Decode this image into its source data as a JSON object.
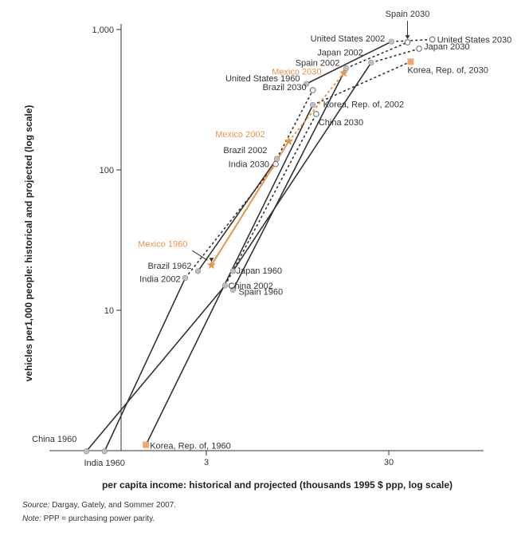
{
  "chart_data": {
    "type": "line",
    "title": "",
    "xlabel": "per capita income: historical and projected (thousands 1995 $ ppp, log scale)",
    "ylabel": "vehicles per1,000 people: historical and projected  (log scale)",
    "x_scale": "log",
    "y_scale": "log",
    "xlim": [
      0.55,
      60
    ],
    "ylim": [
      1,
      1000
    ],
    "x_ticks": [
      {
        "value": 3,
        "label": "3"
      },
      {
        "value": 30,
        "label": "30"
      }
    ],
    "y_ticks": [
      {
        "value": 10,
        "label": "10"
      },
      {
        "value": 100,
        "label": "100"
      },
      {
        "value": 1000,
        "label": "1,000"
      }
    ],
    "grid": false,
    "colors": {
      "historical": "#333333",
      "highlight": "#e8954a",
      "marker_gray": "#bfbfbf",
      "marker_orange": "#f2a66d"
    },
    "series": [
      {
        "key": "china",
        "points": [
          {
            "label": "China 1960",
            "x": 0.66,
            "y": 0.99
          },
          {
            "label": "China 2002",
            "x": 3.8,
            "y": 15
          },
          {
            "label": "China 2030",
            "x": 12,
            "y": 250
          }
        ]
      },
      {
        "key": "india",
        "points": [
          {
            "label": "India 1960",
            "x": 0.83,
            "y": 0.99
          },
          {
            "label": "India 2002",
            "x": 2.3,
            "y": 17
          },
          {
            "label": "India 2030",
            "x": 7.2,
            "y": 110
          }
        ]
      },
      {
        "key": "korea",
        "points": [
          {
            "label": "Korea, Rep. of, 1960",
            "x": 1.4,
            "y": 1.1
          },
          {
            "label": "Korea, Rep. of, 2002",
            "x": 11.5,
            "y": 290
          },
          {
            "label": "Korea, Rep. of, 2030",
            "x": 39.5,
            "y": 590
          }
        ]
      },
      {
        "key": "spain",
        "points": [
          {
            "label": "Spain 1960",
            "x": 4.2,
            "y": 14
          },
          {
            "label": "Spain 2002",
            "x": 17.5,
            "y": 530
          },
          {
            "label": "Spain 2030",
            "x": 38,
            "y": 810
          }
        ]
      },
      {
        "key": "japan",
        "points": [
          {
            "label": "Japan 1960",
            "x": 4.2,
            "y": 19
          },
          {
            "label": "Japan 2002",
            "x": 24,
            "y": 580
          },
          {
            "label": "Japan 2030",
            "x": 44,
            "y": 730
          }
        ]
      },
      {
        "key": "united_states",
        "points": [
          {
            "label": "United States 1960",
            "x": 10.6,
            "y": 410
          },
          {
            "label": "United States 2002",
            "x": 31,
            "y": 820
          },
          {
            "label": "United States 2030",
            "x": 52,
            "y": 850
          }
        ]
      },
      {
        "key": "brazil",
        "points": [
          {
            "label": "Brazil 1962",
            "x": 2.7,
            "y": 19
          },
          {
            "label": "Brazil 2002",
            "x": 7.3,
            "y": 120
          },
          {
            "label": "Brazil 2030",
            "x": 11.5,
            "y": 370
          }
        ]
      },
      {
        "key": "mexico",
        "points": [
          {
            "label": "Mexico 1960",
            "x": 3.2,
            "y": 21
          },
          {
            "label": "Mexico 2002",
            "x": 8.5,
            "y": 160
          },
          {
            "label": "Mexico 2030",
            "x": 17,
            "y": 490
          }
        ]
      }
    ]
  },
  "footer": {
    "source_label": "Source:",
    "source_text": " Dargay, Gately, and Sommer 2007.",
    "note_label": "Note:",
    "note_text": " PPP = purchasing power parity."
  }
}
